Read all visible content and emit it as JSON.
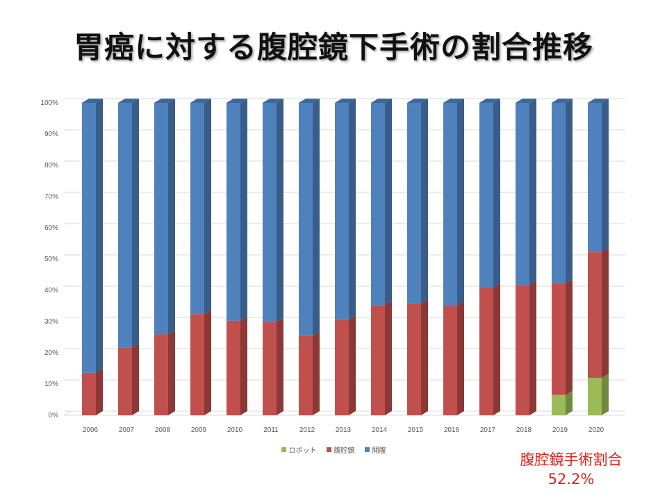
{
  "title": "胃癌に対する腹腔鏡下手術の割合推移",
  "annotation": {
    "label": "腹腔鏡手術割合",
    "value": "52.2%"
  },
  "colors": {
    "open": "#4f81bd",
    "open_side": "#385d8a",
    "open_top": "#3f689a",
    "lap": "#c0504d",
    "lap_side": "#8c3836",
    "lap_top": "#9e403d",
    "robot": "#9bbb59",
    "robot_side": "#71893f",
    "robot_top": "#7d9a45",
    "annotation": "#e0201a",
    "grid": "#d9d9d9"
  },
  "chart_data": {
    "type": "bar",
    "stacked": true,
    "percent": true,
    "title": "",
    "categories": [
      "2006",
      "2007",
      "2008",
      "2009",
      "2010",
      "2011",
      "2012",
      "2013",
      "2014",
      "2015",
      "2016",
      "2017",
      "2018",
      "2019",
      "2020"
    ],
    "y_ticks": [
      "0%",
      "10%",
      "20%",
      "30%",
      "40%",
      "50%",
      "60%",
      "70%",
      "80%",
      "90%",
      "100%"
    ],
    "ylim": [
      0,
      100
    ],
    "series": [
      {
        "name": "ロボット",
        "key": "robot",
        "values": [
          0,
          0,
          0,
          0,
          0,
          0,
          0,
          0,
          0,
          0,
          0,
          0,
          0,
          6.5,
          12.0
        ]
      },
      {
        "name": "腹腔鏡",
        "key": "lap",
        "values": [
          13.6,
          21.7,
          25.9,
          32.4,
          30.3,
          29.8,
          25.5,
          30.6,
          35.3,
          35.7,
          35.1,
          40.9,
          41.7,
          35.7,
          40.2
        ]
      },
      {
        "name": "開腹",
        "key": "open",
        "values": [
          86.4,
          78.3,
          74.1,
          67.6,
          69.7,
          70.2,
          74.5,
          69.4,
          64.7,
          64.3,
          64.9,
          59.1,
          58.3,
          57.8,
          47.8
        ]
      }
    ],
    "legend": [
      "ロボット",
      "腹腔鏡",
      "開腹"
    ],
    "legend_position": "bottom",
    "grid": true
  }
}
